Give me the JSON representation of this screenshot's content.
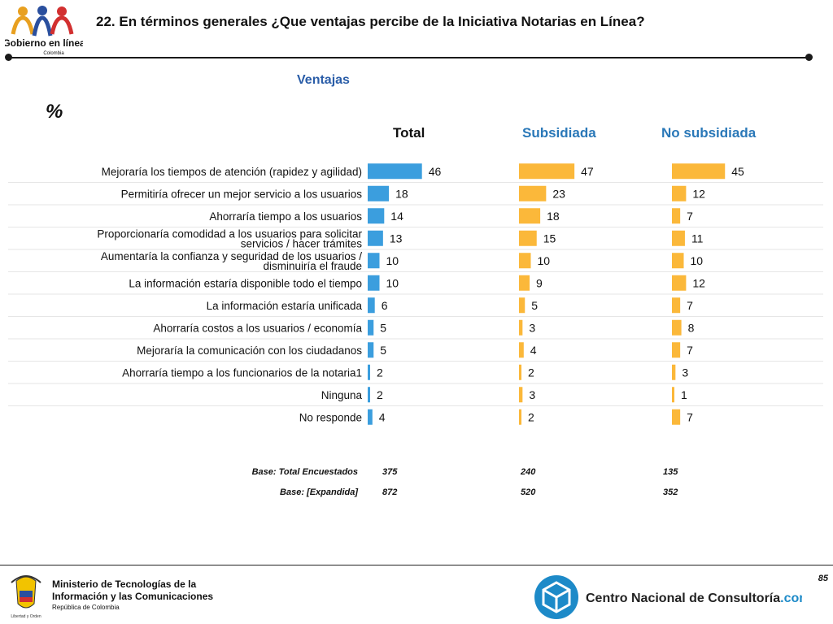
{
  "header": {
    "title": "22. En términos generales ¿Que ventajas percibe de la Iniciativa Notarias en Línea?",
    "logo_text": "Gobierno en línea",
    "logo_subtext": "Colombia"
  },
  "subtitle": "Ventajas",
  "unit_label": "%",
  "chart_data": {
    "type": "bar",
    "orientation": "horizontal",
    "categories": [
      "Mejoraría los tiempos de atención (rapidez y agilidad)",
      "Permitiría ofrecer un mejor servicio a los usuarios",
      "Ahorraría tiempo a los usuarios",
      "Proporcionaría comodidad a los usuarios para solicitar servicios / hacer trámites",
      "Aumentaría la confianza y seguridad de los usuarios / disminuiría el fraude",
      "La información estaría disponible todo el tiempo",
      "La información estaría unificada",
      "Ahorraría costos a los usuarios / economía",
      "Mejoraría la comunicación con los ciudadanos",
      "Ahorraría tiempo a los funcionarios de la notaria1",
      "Ninguna",
      "No responde"
    ],
    "series": [
      {
        "name": "Total",
        "color": "#3b9ede",
        "values": [
          46,
          18,
          14,
          13,
          10,
          10,
          6,
          5,
          5,
          2,
          2,
          4
        ]
      },
      {
        "name": "Subsidiada",
        "color": "#fbb83a",
        "values": [
          47,
          23,
          18,
          15,
          10,
          9,
          5,
          3,
          4,
          2,
          3,
          2
        ]
      },
      {
        "name": "No subsidiada",
        "color": "#fbb83a",
        "values": [
          45,
          12,
          7,
          11,
          10,
          12,
          7,
          8,
          7,
          3,
          1,
          7
        ]
      }
    ],
    "header_colors": {
      "Total": "#111111",
      "Subsidiada": "#2a78b8",
      "No subsidiada": "#2a78b8"
    },
    "grid": "horizontal separators"
  },
  "bases": {
    "rows": [
      {
        "label": "Base: Total Encuestados",
        "values": [
          "375",
          "240",
          "135"
        ]
      },
      {
        "label": "Base: [Expandida]",
        "values": [
          "872",
          "520",
          "352"
        ]
      }
    ]
  },
  "footer": {
    "page_number": "85",
    "ministry_line1": "Ministerio de Tecnologías de la",
    "ministry_line2": "Información y las Comunicaciones",
    "ministry_line3": "República de Colombia",
    "seal_caption": "Libertad y Orden",
    "cnc_name": "Centro Nacional de Consultoría",
    "cnc_suffix": ".com"
  }
}
